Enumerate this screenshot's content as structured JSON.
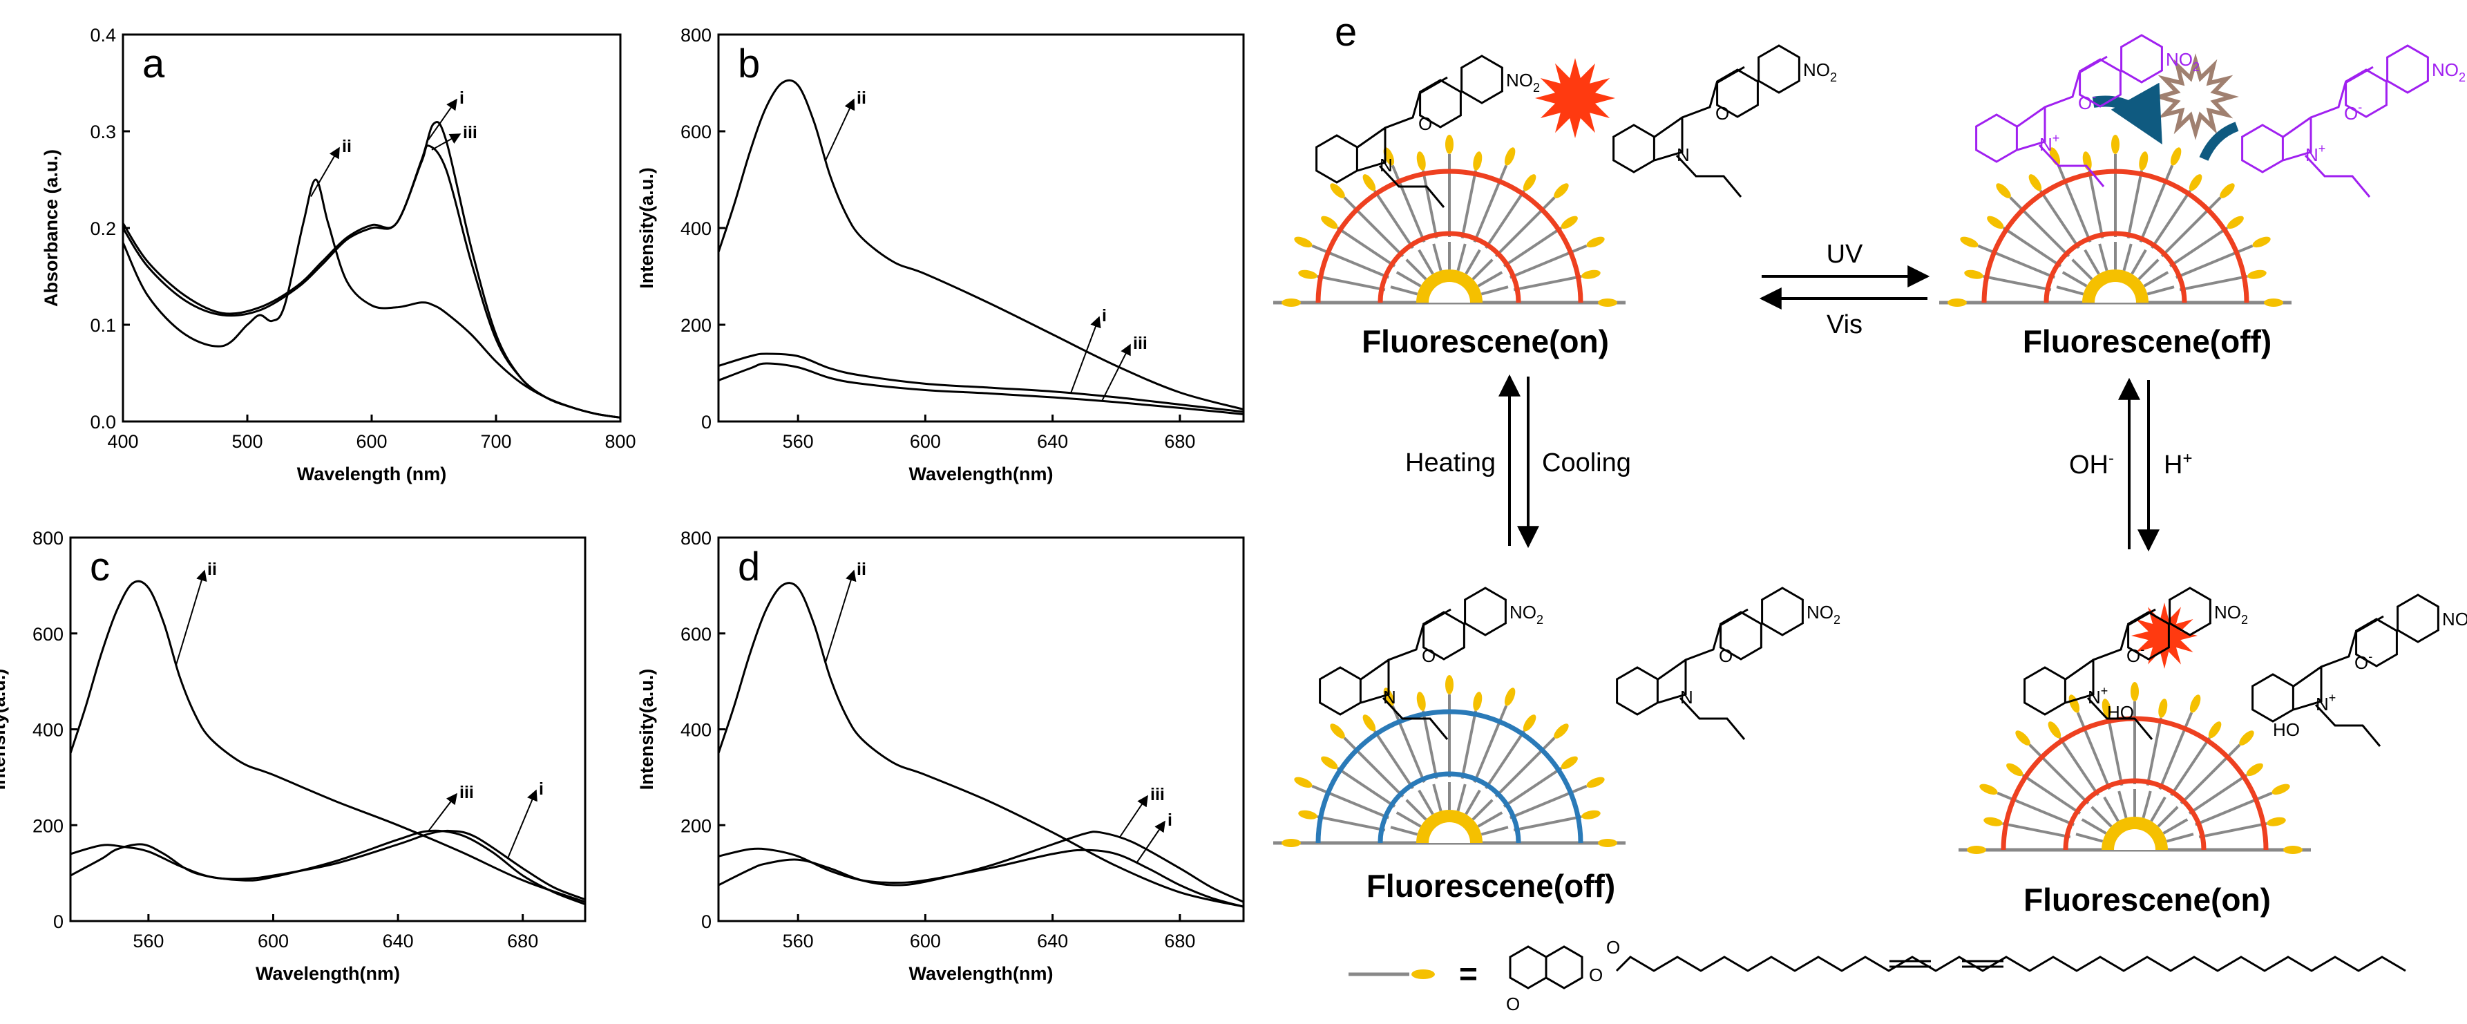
{
  "chart_data": [
    {
      "panel": "a",
      "type": "line",
      "xlabel": "Wavelength (nm)",
      "ylabel": "Absorbance (a.u.)",
      "xlim": [
        400,
        800
      ],
      "ylim": [
        0,
        0.4
      ],
      "xticks": [
        "400",
        "500",
        "600",
        "700",
        "800"
      ],
      "yticks": [
        "0.0",
        "0.1",
        "0.2",
        "0.3",
        "0.4"
      ],
      "series": [
        {
          "name": "i",
          "x": [
            400,
            420,
            450,
            480,
            510,
            540,
            560,
            580,
            600,
            620,
            640,
            650,
            660,
            680,
            700,
            720,
            740,
            760,
            780,
            800
          ],
          "y": [
            0.205,
            0.165,
            0.13,
            0.112,
            0.118,
            0.14,
            0.165,
            0.19,
            0.203,
            0.205,
            0.27,
            0.308,
            0.29,
            0.18,
            0.09,
            0.045,
            0.025,
            0.015,
            0.008,
            0.004
          ]
        },
        {
          "name": "ii",
          "x": [
            400,
            420,
            450,
            480,
            500,
            510,
            520,
            530,
            545,
            555,
            565,
            580,
            600,
            620,
            640,
            650,
            660,
            680,
            700,
            720,
            740,
            760,
            780,
            800
          ],
          "y": [
            0.185,
            0.13,
            0.09,
            0.078,
            0.1,
            0.11,
            0.104,
            0.12,
            0.205,
            0.25,
            0.205,
            0.145,
            0.12,
            0.118,
            0.123,
            0.12,
            0.112,
            0.09,
            0.062,
            0.04,
            0.025,
            0.015,
            0.008,
            0.004
          ]
        },
        {
          "name": "iii",
          "x": [
            400,
            420,
            450,
            480,
            510,
            540,
            560,
            580,
            600,
            620,
            640,
            646,
            660,
            680,
            700,
            720,
            740,
            760,
            780,
            800
          ],
          "y": [
            0.2,
            0.16,
            0.125,
            0.11,
            0.115,
            0.138,
            0.162,
            0.188,
            0.2,
            0.205,
            0.268,
            0.285,
            0.26,
            0.165,
            0.085,
            0.045,
            0.025,
            0.015,
            0.008,
            0.004
          ]
        }
      ],
      "annotations": [
        {
          "text": "ii",
          "series": "ii"
        },
        {
          "text": "i",
          "series": "i"
        },
        {
          "text": "iii",
          "series": "iii"
        }
      ]
    },
    {
      "panel": "b",
      "type": "line",
      "xlabel": "Wavelength(nm)",
      "ylabel": "Intensity(a.u.)",
      "xlim": [
        535,
        700
      ],
      "ylim": [
        0,
        800
      ],
      "xticks": [
        "560",
        "600",
        "640",
        "680"
      ],
      "yticks": [
        "0",
        "200",
        "400",
        "600",
        "800"
      ],
      "series": [
        {
          "name": "i",
          "x": [
            535,
            545,
            550,
            560,
            570,
            580,
            600,
            620,
            640,
            660,
            680,
            700
          ],
          "y": [
            115,
            135,
            140,
            135,
            110,
            95,
            78,
            70,
            62,
            50,
            35,
            20
          ]
        },
        {
          "name": "ii",
          "x": [
            535,
            540,
            545,
            550,
            555,
            560,
            565,
            570,
            575,
            580,
            590,
            600,
            620,
            640,
            660,
            680,
            700
          ],
          "y": [
            350,
            450,
            560,
            650,
            700,
            695,
            620,
            510,
            430,
            380,
            330,
            305,
            245,
            180,
            115,
            60,
            25
          ]
        },
        {
          "name": "iii",
          "x": [
            535,
            545,
            550,
            560,
            570,
            580,
            600,
            620,
            640,
            660,
            680,
            700
          ],
          "y": [
            85,
            110,
            120,
            112,
            90,
            78,
            65,
            58,
            50,
            40,
            28,
            15
          ]
        }
      ],
      "annotations": [
        {
          "text": "ii",
          "series": "ii"
        },
        {
          "text": "i",
          "series": "i"
        },
        {
          "text": "iii",
          "series": "iii"
        }
      ]
    },
    {
      "panel": "c",
      "type": "line",
      "xlabel": "Wavelength(nm)",
      "ylabel": "Intensity(a.u.)",
      "xlim": [
        535,
        700
      ],
      "ylim": [
        0,
        800
      ],
      "xticks": [
        "560",
        "600",
        "640",
        "680"
      ],
      "yticks": [
        "0",
        "200",
        "400",
        "600",
        "800"
      ],
      "series": [
        {
          "name": "i",
          "x": [
            535,
            545,
            552,
            560,
            570,
            580,
            590,
            600,
            620,
            640,
            650,
            657,
            665,
            680,
            690,
            700
          ],
          "y": [
            140,
            158,
            155,
            145,
            115,
            92,
            88,
            95,
            120,
            160,
            182,
            188,
            175,
            110,
            70,
            45
          ]
        },
        {
          "name": "ii",
          "x": [
            535,
            540,
            545,
            550,
            555,
            560,
            565,
            570,
            575,
            580,
            590,
            600,
            620,
            640,
            660,
            680,
            700
          ],
          "y": [
            350,
            450,
            560,
            650,
            705,
            695,
            620,
            510,
            430,
            380,
            330,
            305,
            250,
            200,
            145,
            85,
            40
          ]
        },
        {
          "name": "iii",
          "x": [
            535,
            545,
            550,
            558,
            565,
            575,
            590,
            600,
            620,
            640,
            650,
            660,
            670,
            680,
            690,
            700
          ],
          "y": [
            95,
            130,
            150,
            160,
            140,
            100,
            85,
            92,
            125,
            170,
            188,
            180,
            145,
            95,
            60,
            35
          ]
        }
      ],
      "annotations": [
        {
          "text": "ii",
          "series": "ii"
        },
        {
          "text": "iii",
          "series": "iii"
        },
        {
          "text": "i",
          "series": "i"
        }
      ]
    },
    {
      "panel": "d",
      "type": "line",
      "xlabel": "Wavelength(nm)",
      "ylabel": "Intensity(a.u.)",
      "xlim": [
        535,
        700
      ],
      "ylim": [
        0,
        800
      ],
      "xticks": [
        "560",
        "600",
        "640",
        "680"
      ],
      "yticks": [
        "0",
        "200",
        "400",
        "600",
        "800"
      ],
      "series": [
        {
          "name": "i",
          "x": [
            535,
            545,
            552,
            560,
            570,
            580,
            590,
            600,
            620,
            640,
            650,
            660,
            670,
            680,
            690,
            700
          ],
          "y": [
            135,
            150,
            148,
            135,
            105,
            85,
            80,
            85,
            110,
            140,
            148,
            140,
            110,
            75,
            48,
            30
          ]
        },
        {
          "name": "ii",
          "x": [
            535,
            540,
            545,
            550,
            555,
            560,
            565,
            570,
            575,
            580,
            590,
            600,
            620,
            640,
            660,
            680,
            700
          ],
          "y": [
            350,
            450,
            560,
            650,
            700,
            695,
            620,
            510,
            430,
            380,
            330,
            305,
            250,
            185,
            115,
            60,
            30
          ]
        },
        {
          "name": "iii",
          "x": [
            535,
            545,
            550,
            560,
            570,
            580,
            590,
            600,
            620,
            640,
            650,
            655,
            665,
            680,
            690,
            700
          ],
          "y": [
            75,
            108,
            120,
            128,
            110,
            85,
            75,
            82,
            115,
            160,
            182,
            185,
            165,
            110,
            70,
            40
          ]
        }
      ],
      "annotations": [
        {
          "text": "ii",
          "series": "ii"
        },
        {
          "text": "iii",
          "series": "iii"
        },
        {
          "text": "i",
          "series": "i"
        }
      ]
    }
  ],
  "scheme": {
    "panel_letter": "e",
    "states": {
      "top_left": "Fluorescene(on)",
      "top_right": "Fluorescene(off)",
      "bottom_left": "Fluorescene(off)",
      "bottom_right": "Fluorescene(on)"
    },
    "conditions": {
      "uv": "UV",
      "vis": "Vis",
      "heating": "Heating",
      "cooling": "Cooling",
      "oh": "OH",
      "oh_sup": "-",
      "h": "H",
      "h_sup": "+"
    },
    "chem_labels": {
      "no2": "NO",
      "no2_sub": "2",
      "n": "N",
      "n_plus": "N",
      "plus": "+",
      "o": "O",
      "o_minus": "O",
      "minus": "-",
      "ho": "HO",
      "legend_equals": "="
    },
    "colors": {
      "fluor_on_arc": "#ee4020",
      "fluor_off_arc": "#2a7ab8",
      "core": "#f5c000",
      "spoke": "#888888",
      "tip": "#f5c000",
      "burst_on": "#ff3a10",
      "burst_off": "#a08070",
      "merocyanine": "#a020f0",
      "arrow_teal": "#0f5a80"
    }
  }
}
